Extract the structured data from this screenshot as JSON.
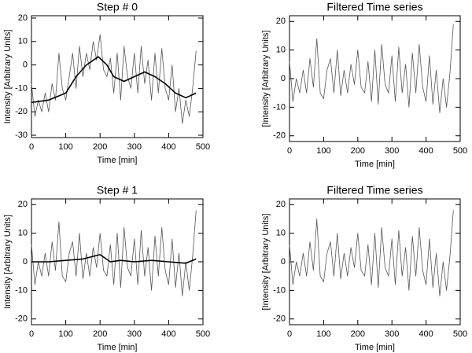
{
  "chart_data": [
    {
      "type": "line",
      "title": "Step # 0",
      "xlabel": "Time [min]",
      "ylabel": "Intensity [Arbitrary Units]",
      "xlim": [
        0,
        500
      ],
      "ylim": [
        -31,
        21
      ],
      "xticks": [
        0,
        100,
        200,
        300,
        400,
        500
      ],
      "yticks": [
        -30,
        -20,
        -10,
        0,
        10,
        20
      ],
      "series": [
        {
          "color": "#555555",
          "line_width": 0.8,
          "x": [
            0,
            10,
            20,
            30,
            40,
            50,
            60,
            70,
            80,
            90,
            100,
            110,
            120,
            130,
            140,
            150,
            160,
            170,
            180,
            190,
            200,
            210,
            220,
            230,
            240,
            250,
            260,
            270,
            280,
            290,
            300,
            310,
            320,
            330,
            340,
            350,
            360,
            370,
            380,
            390,
            400,
            410,
            420,
            430,
            440,
            450,
            460,
            470,
            480
          ],
          "values": [
            -8,
            -22,
            -15,
            -20,
            -12,
            -20,
            -8,
            -15,
            5,
            -10,
            -15,
            -5,
            5,
            -10,
            8,
            -5,
            5,
            -2,
            10,
            2,
            13,
            -2,
            -5,
            3,
            -12,
            5,
            -15,
            8,
            -5,
            -10,
            5,
            -12,
            8,
            -8,
            2,
            -15,
            5,
            -12,
            7,
            -10,
            -15,
            0,
            -20,
            -10,
            -25,
            -15,
            -22,
            -10,
            6
          ]
        },
        {
          "color": "#000000",
          "line_width": 1.6,
          "x": [
            0,
            50,
            100,
            130,
            160,
            195,
            220,
            240,
            270,
            300,
            330,
            360,
            390,
            420,
            450,
            480
          ],
          "values": [
            -16,
            -15,
            -12,
            -5,
            0,
            3.5,
            0,
            -5,
            -7,
            -5,
            -3,
            -5,
            -8,
            -12,
            -14,
            -12
          ]
        }
      ]
    },
    {
      "type": "line",
      "title": "Filtered Time series",
      "xlabel": "Time [min]",
      "ylabel": "[Intensity [Arbitrary Units]",
      "xlim": [
        0,
        500
      ],
      "ylim": [
        -22,
        22
      ],
      "xticks": [
        0,
        100,
        200,
        300,
        400,
        500
      ],
      "yticks": [
        -20,
        -10,
        0,
        10,
        20
      ],
      "series": [
        {
          "color": "#555555",
          "line_width": 0.8,
          "x": [
            0,
            10,
            20,
            30,
            40,
            50,
            60,
            70,
            80,
            90,
            100,
            110,
            120,
            130,
            140,
            150,
            160,
            170,
            180,
            190,
            200,
            210,
            220,
            230,
            240,
            250,
            260,
            270,
            280,
            290,
            300,
            310,
            320,
            330,
            340,
            350,
            360,
            370,
            380,
            390,
            400,
            410,
            420,
            430,
            440,
            450,
            460,
            470,
            480
          ],
          "values": [
            6,
            -8,
            0,
            -5,
            3,
            -5,
            7,
            -3,
            14,
            -5,
            -7,
            3,
            7,
            -5,
            10,
            -6,
            3,
            -5,
            5,
            -2,
            10,
            -3,
            -5,
            6,
            -8,
            10,
            -9,
            12,
            -2,
            -5,
            8,
            -8,
            11,
            -5,
            5,
            -10,
            9,
            -5,
            12,
            -3,
            -8,
            8,
            -9,
            3,
            -12,
            0,
            -10,
            2,
            19
          ]
        }
      ]
    },
    {
      "type": "line",
      "title": "Step # 1",
      "xlabel": "Time [min]",
      "ylabel": "Intensity [Arbitrary Units]",
      "xlim": [
        0,
        500
      ],
      "ylim": [
        -22,
        22
      ],
      "xticks": [
        0,
        100,
        200,
        300,
        400,
        500
      ],
      "yticks": [
        -20,
        -10,
        0,
        10,
        20
      ],
      "series": [
        {
          "color": "#555555",
          "line_width": 0.8,
          "x": [
            0,
            10,
            20,
            30,
            40,
            50,
            60,
            70,
            80,
            90,
            100,
            110,
            120,
            130,
            140,
            150,
            160,
            170,
            180,
            190,
            200,
            210,
            220,
            230,
            240,
            250,
            260,
            270,
            280,
            290,
            300,
            310,
            320,
            330,
            340,
            350,
            360,
            370,
            380,
            390,
            400,
            410,
            420,
            430,
            440,
            450,
            460,
            470,
            480
          ],
          "values": [
            6,
            -8,
            0,
            -5,
            3,
            -5,
            7,
            -3,
            14,
            -5,
            -7,
            3,
            7,
            -5,
            10,
            -6,
            3,
            -5,
            5,
            -2,
            10,
            -3,
            -5,
            6,
            -8,
            10,
            -9,
            12,
            -2,
            -5,
            8,
            -8,
            11,
            -5,
            5,
            -10,
            9,
            -5,
            12,
            -3,
            -8,
            8,
            -9,
            3,
            -12,
            0,
            -10,
            2,
            18
          ]
        },
        {
          "color": "#000000",
          "line_width": 1.6,
          "x": [
            0,
            50,
            100,
            150,
            200,
            230,
            260,
            300,
            350,
            400,
            450,
            480
          ],
          "values": [
            0,
            0,
            0.5,
            1,
            2.5,
            0,
            0.5,
            0,
            0.5,
            0,
            -0.5,
            1
          ]
        }
      ]
    },
    {
      "type": "line",
      "title": "Filtered Time series",
      "xlabel": "Time [min]",
      "ylabel": "[Intensity [Arbitrary Units]",
      "xlim": [
        0,
        500
      ],
      "ylim": [
        -22,
        22
      ],
      "xticks": [
        0,
        100,
        200,
        300,
        400,
        500
      ],
      "yticks": [
        -20,
        -10,
        0,
        10,
        20
      ],
      "series": [
        {
          "color": "#555555",
          "line_width": 0.8,
          "x": [
            0,
            10,
            20,
            30,
            40,
            50,
            60,
            70,
            80,
            90,
            100,
            110,
            120,
            130,
            140,
            150,
            160,
            170,
            180,
            190,
            200,
            210,
            220,
            230,
            240,
            250,
            260,
            270,
            280,
            290,
            300,
            310,
            320,
            330,
            340,
            350,
            360,
            370,
            380,
            390,
            400,
            410,
            420,
            430,
            440,
            450,
            460,
            470,
            480
          ],
          "values": [
            6,
            -8,
            0,
            -5,
            3,
            -5,
            7,
            -3,
            15,
            -5,
            -7,
            3,
            7,
            -5,
            10,
            -6,
            3,
            -5,
            5,
            -2,
            10,
            -3,
            -5,
            6,
            -8,
            10,
            -9,
            12,
            -2,
            -5,
            8,
            -8,
            11,
            -5,
            5,
            -10,
            9,
            -5,
            12,
            -3,
            -8,
            8,
            -9,
            3,
            -12,
            0,
            -10,
            2,
            18
          ]
        }
      ]
    }
  ]
}
